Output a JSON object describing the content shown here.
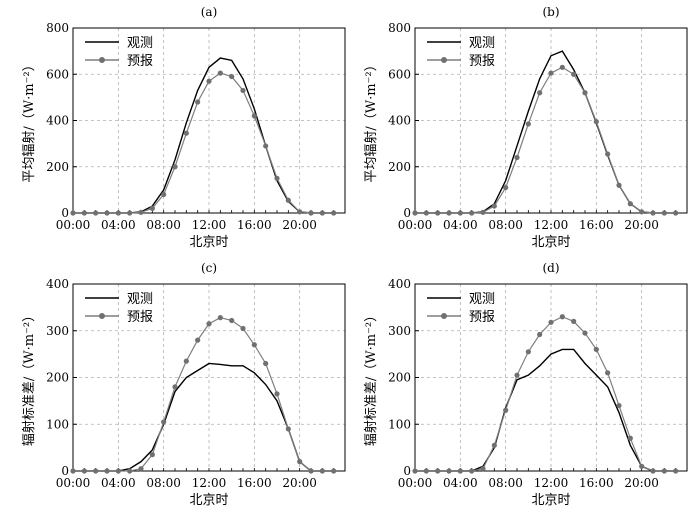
{
  "colors": {
    "observed": "#000000",
    "forecast": "#7f7f7f",
    "forecast_marker": "#707070",
    "grid": "#b0b0b0",
    "axis": "#000000"
  },
  "chart_data": [
    {
      "type": "line",
      "panel_label": "(a)",
      "xlabel": "北京时",
      "ylabel": "平均辐射/（W·m⁻²）",
      "ylim": [
        0,
        800
      ],
      "yticks": [
        0,
        200,
        400,
        600,
        800
      ],
      "x": [
        "00:00",
        "01:00",
        "02:00",
        "03:00",
        "04:00",
        "05:00",
        "06:00",
        "07:00",
        "08:00",
        "09:00",
        "10:00",
        "11:00",
        "12:00",
        "13:00",
        "14:00",
        "15:00",
        "16:00",
        "17:00",
        "18:00",
        "19:00",
        "20:00",
        "21:00",
        "22:00",
        "23:00"
      ],
      "xtick_labels": [
        "00:00",
        "04:00",
        "08:00",
        "12:00",
        "16:00",
        "20:00"
      ],
      "grid": true,
      "legend_position": "top-left",
      "series": [
        {
          "name": "观测",
          "marker": false,
          "values": [
            0,
            0,
            0,
            0,
            0,
            0,
            5,
            30,
            100,
            230,
            390,
            530,
            630,
            670,
            660,
            580,
            450,
            290,
            140,
            50,
            5,
            0,
            0,
            0
          ]
        },
        {
          "name": "预报",
          "marker": true,
          "values": [
            0,
            0,
            0,
            0,
            0,
            0,
            3,
            20,
            80,
            200,
            345,
            480,
            570,
            605,
            590,
            530,
            420,
            290,
            150,
            55,
            5,
            0,
            0,
            0
          ]
        }
      ]
    },
    {
      "type": "line",
      "panel_label": "(b)",
      "xlabel": "北京时",
      "ylabel": "平均辐射/（W·m⁻²）",
      "ylim": [
        0,
        800
      ],
      "yticks": [
        0,
        200,
        400,
        600,
        800
      ],
      "x": [
        "00:00",
        "01:00",
        "02:00",
        "03:00",
        "04:00",
        "05:00",
        "06:00",
        "07:00",
        "08:00",
        "09:00",
        "10:00",
        "11:00",
        "12:00",
        "13:00",
        "14:00",
        "15:00",
        "16:00",
        "17:00",
        "18:00",
        "19:00",
        "20:00",
        "21:00",
        "22:00",
        "23:00"
      ],
      "xtick_labels": [
        "00:00",
        "04:00",
        "08:00",
        "12:00",
        "16:00",
        "20:00"
      ],
      "grid": true,
      "legend_position": "top-left",
      "series": [
        {
          "name": "观测",
          "marker": false,
          "values": [
            0,
            0,
            0,
            0,
            0,
            0,
            5,
            40,
            140,
            290,
            440,
            580,
            680,
            700,
            620,
            520,
            390,
            250,
            120,
            40,
            5,
            0,
            0,
            0
          ]
        },
        {
          "name": "预报",
          "marker": true,
          "values": [
            0,
            0,
            0,
            0,
            0,
            0,
            3,
            30,
            110,
            240,
            385,
            520,
            605,
            630,
            600,
            520,
            395,
            255,
            120,
            40,
            5,
            0,
            0,
            0
          ]
        }
      ]
    },
    {
      "type": "line",
      "panel_label": "(c)",
      "xlabel": "北京时",
      "ylabel": "辐射标准差/（W·m⁻²）",
      "ylim": [
        0,
        400
      ],
      "yticks": [
        0,
        100,
        200,
        300,
        400
      ],
      "x": [
        "00:00",
        "01:00",
        "02:00",
        "03:00",
        "04:00",
        "05:00",
        "06:00",
        "07:00",
        "08:00",
        "09:00",
        "10:00",
        "11:00",
        "12:00",
        "13:00",
        "14:00",
        "15:00",
        "16:00",
        "17:00",
        "18:00",
        "19:00",
        "20:00",
        "21:00",
        "22:00",
        "23:00"
      ],
      "xtick_labels": [
        "00:00",
        "04:00",
        "08:00",
        "12:00",
        "16:00",
        "20:00"
      ],
      "grid": true,
      "legend_position": "top-left",
      "series": [
        {
          "name": "观测",
          "marker": false,
          "values": [
            0,
            0,
            0,
            0,
            0,
            5,
            20,
            45,
            100,
            170,
            200,
            215,
            230,
            228,
            225,
            225,
            210,
            185,
            150,
            90,
            20,
            0,
            0,
            0
          ]
        },
        {
          "name": "预报",
          "marker": true,
          "values": [
            0,
            0,
            0,
            0,
            0,
            0,
            5,
            35,
            105,
            180,
            235,
            280,
            315,
            328,
            322,
            305,
            270,
            230,
            165,
            90,
            20,
            0,
            0,
            0
          ]
        }
      ]
    },
    {
      "type": "line",
      "panel_label": "(d)",
      "xlabel": "北京时",
      "ylabel": "辐射标准差/（W·m⁻²）",
      "ylim": [
        0,
        400
      ],
      "yticks": [
        0,
        100,
        200,
        300,
        400
      ],
      "x": [
        "00:00",
        "01:00",
        "02:00",
        "03:00",
        "04:00",
        "05:00",
        "06:00",
        "07:00",
        "08:00",
        "09:00",
        "10:00",
        "11:00",
        "12:00",
        "13:00",
        "14:00",
        "15:00",
        "16:00",
        "17:00",
        "18:00",
        "19:00",
        "20:00",
        "21:00",
        "22:00",
        "23:00"
      ],
      "xtick_labels": [
        "00:00",
        "04:00",
        "08:00",
        "12:00",
        "16:00",
        "20:00"
      ],
      "grid": true,
      "legend_position": "top-left",
      "series": [
        {
          "name": "观测",
          "marker": false,
          "values": [
            0,
            0,
            0,
            0,
            0,
            0,
            10,
            50,
            135,
            195,
            205,
            225,
            250,
            260,
            260,
            230,
            205,
            180,
            125,
            55,
            10,
            0,
            0,
            0
          ]
        },
        {
          "name": "预报",
          "marker": true,
          "values": [
            0,
            0,
            0,
            0,
            0,
            0,
            5,
            55,
            130,
            205,
            255,
            292,
            318,
            330,
            320,
            295,
            260,
            210,
            140,
            70,
            10,
            0,
            0,
            0
          ]
        }
      ]
    }
  ]
}
